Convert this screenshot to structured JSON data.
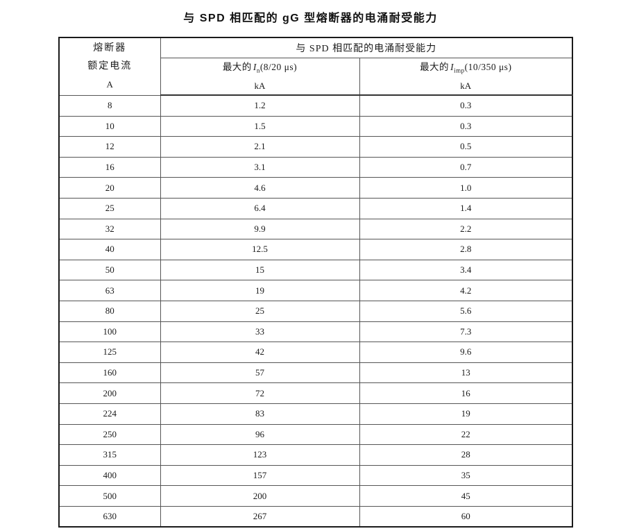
{
  "page": {
    "background": "#ffffff",
    "text_color": "#1a1a1a",
    "border_outer_color": "#1a1a1a",
    "border_inner_color": "#555555"
  },
  "title": "与 SPD 相匹配的 gG 型熔断器的电涌耐受能力",
  "table": {
    "header": {
      "col1_lines": [
        "熔断器",
        "额定电流",
        "A"
      ],
      "span_title": "与 SPD 相匹配的电涌耐受能力",
      "col2": {
        "prefix": "最大的",
        "symbol": "I",
        "subscript": "n",
        "args": "(8/20 μs)",
        "unit": "kA"
      },
      "col3": {
        "prefix": "最大的",
        "symbol": "I",
        "subscript": "imp",
        "args": "(10/350 μs)",
        "unit": "kA"
      }
    },
    "rows": [
      [
        "8",
        "1.2",
        "0.3"
      ],
      [
        "10",
        "1.5",
        "0.3"
      ],
      [
        "12",
        "2.1",
        "0.5"
      ],
      [
        "16",
        "3.1",
        "0.7"
      ],
      [
        "20",
        "4.6",
        "1.0"
      ],
      [
        "25",
        "6.4",
        "1.4"
      ],
      [
        "32",
        "9.9",
        "2.2"
      ],
      [
        "40",
        "12.5",
        "2.8"
      ],
      [
        "50",
        "15",
        "3.4"
      ],
      [
        "63",
        "19",
        "4.2"
      ],
      [
        "80",
        "25",
        "5.6"
      ],
      [
        "100",
        "33",
        "7.3"
      ],
      [
        "125",
        "42",
        "9.6"
      ],
      [
        "160",
        "57",
        "13"
      ],
      [
        "200",
        "72",
        "16"
      ],
      [
        "224",
        "83",
        "19"
      ],
      [
        "250",
        "96",
        "22"
      ],
      [
        "315",
        "123",
        "28"
      ],
      [
        "400",
        "157",
        "35"
      ],
      [
        "500",
        "200",
        "45"
      ],
      [
        "630",
        "267",
        "60"
      ]
    ]
  }
}
